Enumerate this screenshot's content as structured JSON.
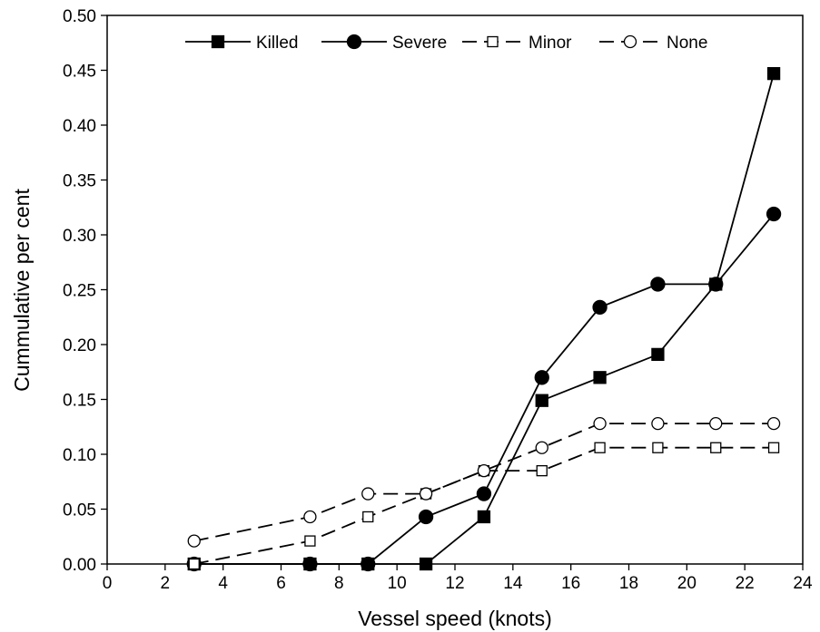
{
  "chart_data": {
    "type": "line",
    "xlabel": "Vessel speed (knots)",
    "ylabel": "Cummulative per cent",
    "xlim": [
      0,
      24
    ],
    "ylim": [
      0,
      0.5
    ],
    "x_ticks": [
      "0",
      "2",
      "4",
      "6",
      "8",
      "10",
      "12",
      "14",
      "16",
      "18",
      "20",
      "22",
      "24"
    ],
    "y_ticks": [
      "0.00",
      "0.05",
      "0.10",
      "0.15",
      "0.20",
      "0.25",
      "0.30",
      "0.35",
      "0.40",
      "0.45",
      "0.50"
    ],
    "grid": false,
    "legend_position": "top",
    "x": [
      3,
      7,
      9,
      11,
      13,
      15,
      17,
      19,
      21,
      23
    ],
    "series": [
      {
        "name": "Killed",
        "marker": "filled-square",
        "line": "solid",
        "values": [
          0,
          0,
          0,
          0,
          0.043,
          0.149,
          0.17,
          0.191,
          0.255,
          0.447
        ]
      },
      {
        "name": "Severe",
        "marker": "filled-circle",
        "line": "solid",
        "values": [
          0,
          0,
          0,
          0.043,
          0.064,
          0.17,
          0.234,
          0.255,
          0.255,
          0.319
        ]
      },
      {
        "name": "Minor",
        "marker": "open-square",
        "line": "dashed",
        "values": [
          0,
          0.021,
          0.043,
          0.064,
          0.085,
          0.085,
          0.106,
          0.106,
          0.106,
          0.106
        ]
      },
      {
        "name": "None",
        "marker": "open-circle",
        "line": "dashed",
        "values": [
          0.021,
          0.043,
          0.064,
          0.064,
          0.085,
          0.106,
          0.128,
          0.128,
          0.128,
          0.128
        ]
      }
    ]
  }
}
